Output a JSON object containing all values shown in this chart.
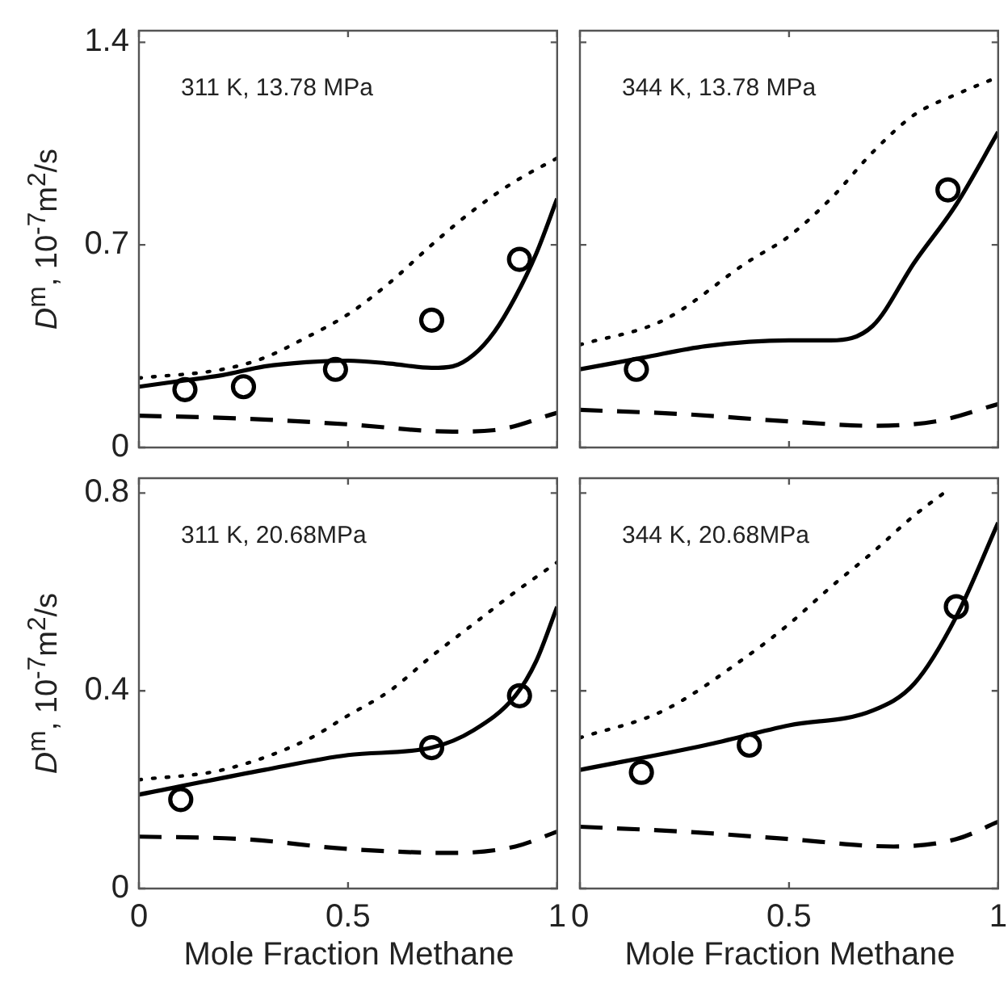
{
  "chart_data": [
    {
      "type": "line",
      "ylabel": "D$^{m}$, 10$^{-7}$m$^{2}$/s",
      "annotations": [
        "311 K, 13.78 MPa"
      ],
      "xlim": [
        0,
        1
      ],
      "xticks": [
        0,
        0.5,
        1
      ],
      "ylim": [
        0,
        1.44
      ],
      "yticks": [
        0,
        0.7,
        1.4
      ],
      "grid": false,
      "tick_labels": "y",
      "series": [
        {
          "color": "#000000",
          "line_style": "solid",
          "marker": "none",
          "x": [
            0,
            0.1,
            0.2,
            0.3,
            0.4,
            0.5,
            0.6,
            0.7,
            0.75,
            0.8,
            0.85,
            0.9,
            0.95,
            1
          ],
          "values": [
            0.21,
            0.23,
            0.25,
            0.28,
            0.295,
            0.3,
            0.29,
            0.275,
            0.28,
            0.32,
            0.4,
            0.52,
            0.67,
            0.86
          ]
        },
        {
          "color": "#000000",
          "line_style": "dotted",
          "marker": "none",
          "x": [
            0,
            0.2,
            0.3,
            0.4,
            0.5,
            0.6,
            0.7,
            0.8,
            0.9,
            1
          ],
          "values": [
            0.24,
            0.27,
            0.31,
            0.38,
            0.46,
            0.57,
            0.7,
            0.82,
            0.92,
            1.0
          ]
        },
        {
          "color": "#000000",
          "line_style": "dashed",
          "marker": "none",
          "x": [
            0,
            0.25,
            0.5,
            0.75,
            0.85,
            1
          ],
          "values": [
            0.11,
            0.1,
            0.08,
            0.055,
            0.06,
            0.12
          ]
        },
        {
          "type": "scatter",
          "color": "#000000",
          "marker": "circle",
          "x": [
            0.11,
            0.25,
            0.47,
            0.7,
            0.91
          ],
          "values": [
            0.2,
            0.21,
            0.27,
            0.44,
            0.65
          ]
        }
      ]
    },
    {
      "type": "line",
      "annotations": [
        "344 K, 13.78 MPa"
      ],
      "xlim": [
        0,
        1
      ],
      "xticks": [
        0,
        0.5,
        1
      ],
      "ylim": [
        0,
        1.44
      ],
      "yticks": [
        0,
        0.7,
        1.4
      ],
      "grid": false,
      "tick_labels": false,
      "series": [
        {
          "color": "#000000",
          "line_style": "solid",
          "marker": "none",
          "x": [
            0,
            0.15,
            0.3,
            0.5,
            0.6,
            0.7,
            0.8,
            0.9,
            1
          ],
          "values": [
            0.27,
            0.31,
            0.35,
            0.37,
            0.37,
            0.42,
            0.64,
            0.84,
            1.09
          ]
        },
        {
          "color": "#000000",
          "line_style": "dotted",
          "marker": "none",
          "x": [
            0,
            0.2,
            0.4,
            0.5,
            0.6,
            0.7,
            0.8,
            0.9,
            1
          ],
          "values": [
            0.355,
            0.44,
            0.64,
            0.73,
            0.86,
            1.02,
            1.15,
            1.22,
            1.28
          ]
        },
        {
          "color": "#000000",
          "line_style": "dashed",
          "marker": "none",
          "x": [
            0,
            0.25,
            0.5,
            0.7,
            0.85,
            1
          ],
          "values": [
            0.13,
            0.115,
            0.09,
            0.075,
            0.09,
            0.15
          ]
        },
        {
          "type": "scatter",
          "color": "#000000",
          "marker": "circle",
          "x": [
            0.135,
            0.88
          ],
          "values": [
            0.27,
            0.89
          ]
        }
      ]
    },
    {
      "type": "line",
      "ylabel": "D$^{m}$, 10$^{-7}$m$^{2}$/s",
      "xlabel": "Mole Fraction Methane",
      "annotations": [
        "311 K, 20.68MPa"
      ],
      "xlim": [
        0,
        1
      ],
      "xticks": [
        0,
        0.5,
        1
      ],
      "ylim": [
        0,
        0.83
      ],
      "yticks": [
        0,
        0.4,
        0.8
      ],
      "grid": false,
      "series": [
        {
          "color": "#000000",
          "line_style": "solid",
          "marker": "none",
          "x": [
            0,
            0.3,
            0.5,
            0.7,
            0.8,
            0.9,
            0.95,
            1
          ],
          "values": [
            0.19,
            0.24,
            0.27,
            0.285,
            0.32,
            0.39,
            0.46,
            0.57
          ]
        },
        {
          "color": "#000000",
          "line_style": "dotted",
          "marker": "none",
          "x": [
            0,
            0.2,
            0.4,
            0.5,
            0.6,
            0.7,
            0.8,
            0.9,
            1
          ],
          "values": [
            0.22,
            0.24,
            0.3,
            0.35,
            0.4,
            0.47,
            0.535,
            0.6,
            0.66
          ]
        },
        {
          "color": "#000000",
          "line_style": "dashed",
          "marker": "none",
          "x": [
            0,
            0.25,
            0.5,
            0.75,
            0.9,
            1
          ],
          "values": [
            0.105,
            0.1,
            0.08,
            0.072,
            0.085,
            0.115
          ]
        },
        {
          "type": "scatter",
          "color": "#000000",
          "marker": "circle",
          "x": [
            0.1,
            0.7,
            0.91
          ],
          "values": [
            0.18,
            0.285,
            0.39
          ]
        }
      ]
    },
    {
      "type": "line",
      "xlabel": "Mole Fraction Methane",
      "annotations": [
        "344 K, 20.68MPa"
      ],
      "xlim": [
        0,
        1
      ],
      "xticks": [
        0,
        0.5,
        1
      ],
      "ylim": [
        0,
        0.83
      ],
      "yticks": [
        0,
        0.4,
        0.8
      ],
      "grid": false,
      "tick_labels": "x",
      "series": [
        {
          "color": "#000000",
          "line_style": "solid",
          "marker": "none",
          "x": [
            0,
            0.3,
            0.5,
            0.7,
            0.8,
            0.9,
            1
          ],
          "values": [
            0.24,
            0.29,
            0.33,
            0.36,
            0.415,
            0.55,
            0.74
          ]
        },
        {
          "color": "#000000",
          "line_style": "dotted",
          "marker": "none",
          "x": [
            0,
            0.2,
            0.4,
            0.5,
            0.6,
            0.7,
            0.8,
            0.87
          ],
          "values": [
            0.305,
            0.36,
            0.47,
            0.535,
            0.61,
            0.68,
            0.755,
            0.8
          ]
        },
        {
          "color": "#000000",
          "line_style": "dashed",
          "marker": "none",
          "x": [
            0,
            0.25,
            0.5,
            0.75,
            0.9,
            1
          ],
          "values": [
            0.125,
            0.115,
            0.1,
            0.085,
            0.1,
            0.135
          ]
        },
        {
          "type": "scatter",
          "color": "#000000",
          "marker": "circle",
          "x": [
            0.147,
            0.405,
            0.9
          ],
          "values": [
            0.235,
            0.29,
            0.57
          ]
        }
      ]
    }
  ]
}
